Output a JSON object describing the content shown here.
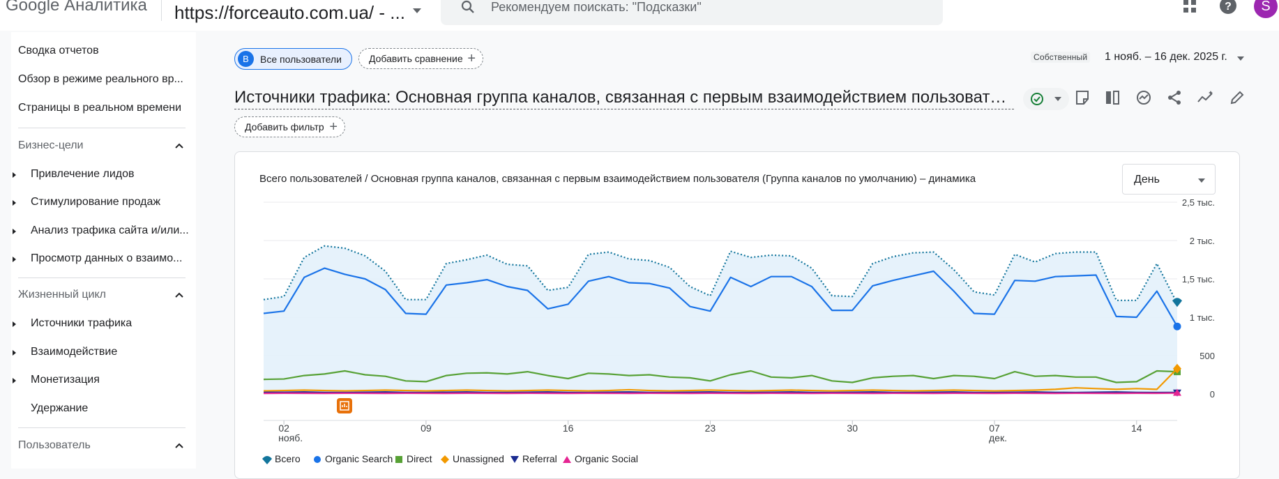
{
  "topbar": {
    "brand": "Google Аналитика",
    "property": "https://forceauto.com.ua/ - ...",
    "search_placeholder": "Рекомендуем поискать: \"Подсказки\"",
    "avatar_letter": "S"
  },
  "sidebar": {
    "top_items": [
      {
        "label": "Сводка отчетов"
      },
      {
        "label": "Обзор в режиме реального вр..."
      },
      {
        "label": "Страницы в реальном времени"
      }
    ],
    "sections": [
      {
        "title": "Бизнес-цели",
        "items": [
          {
            "label": "Привлечение лидов"
          },
          {
            "label": "Стимулирование продаж"
          },
          {
            "label": "Анализ трафика сайта и/или..."
          },
          {
            "label": "Просмотр данных о взаимо..."
          }
        ]
      },
      {
        "title": "Жизненный цикл",
        "items": [
          {
            "label": "Источники трафика"
          },
          {
            "label": "Взаимодействие"
          },
          {
            "label": "Монетизация"
          },
          {
            "label": "Удержание"
          }
        ]
      },
      {
        "title": "Пользователь",
        "items": []
      }
    ]
  },
  "filters": {
    "segment_badge": "B",
    "segment_label": "Все пользователи",
    "add_compare": "Добавить сравнение",
    "add_filter": "Добавить фильтр"
  },
  "date": {
    "badge": "Собственный",
    "range": "1 нояб. – 16 дек. 2025 г."
  },
  "report": {
    "title": "Источники трафика: Основная группа каналов, связанная с первым взаимодействием пользователя"
  },
  "card": {
    "title": "Всего пользователей / Основная группа каналов, связанная с первым взаимодействием пользователя (Группа каналов по умолчанию) – динамика",
    "granularity": "День"
  },
  "colors": {
    "accent": "#1a73e8",
    "total": "#12759c",
    "organic_search": "#1a73e8",
    "direct": "#57a135",
    "unassigned": "#f29900",
    "referral": "#1b2c91",
    "organic_social": "#e52592"
  },
  "chart_data": {
    "type": "line",
    "x_range": [
      "2025-11-01",
      "2025-12-16"
    ],
    "x_ticks": [
      {
        "date": "2025-11-02",
        "label": "02",
        "sub": "нояб."
      },
      {
        "date": "2025-11-09",
        "label": "09",
        "sub": ""
      },
      {
        "date": "2025-11-16",
        "label": "16",
        "sub": ""
      },
      {
        "date": "2025-11-23",
        "label": "23",
        "sub": ""
      },
      {
        "date": "2025-11-30",
        "label": "30",
        "sub": ""
      },
      {
        "date": "2025-12-07",
        "label": "07",
        "sub": "дек."
      },
      {
        "date": "2025-12-14",
        "label": "14",
        "sub": ""
      }
    ],
    "y_ticks": [
      {
        "value": 0,
        "label": "0"
      },
      {
        "value": 500,
        "label": "500"
      },
      {
        "value": 1000,
        "label": "1 тыс."
      },
      {
        "value": 1500,
        "label": "1,5 тыс."
      },
      {
        "value": 2000,
        "label": "2 тыс."
      },
      {
        "value": 2500,
        "label": "2,5 тыс."
      }
    ],
    "ylim": [
      0,
      2500
    ],
    "grid": true,
    "legend_position": "bottom-left",
    "series": [
      {
        "name": "Всего",
        "color": "#12759c",
        "marker": "pin",
        "values": [
          1230,
          1270,
          1780,
          1930,
          1900,
          1800,
          1600,
          1230,
          1230,
          1700,
          1750,
          1810,
          1690,
          1670,
          1350,
          1390,
          1820,
          1850,
          1760,
          1740,
          1650,
          1400,
          1280,
          1860,
          1780,
          1810,
          1800,
          1640,
          1280,
          1270,
          1700,
          1790,
          1840,
          1850,
          1620,
          1330,
          1290,
          1820,
          1720,
          1830,
          1850,
          1850,
          1220,
          1220,
          1700,
          1180
        ]
      },
      {
        "name": "Organic Search",
        "color": "#1a73e8",
        "marker": "circle",
        "values": [
          1050,
          1080,
          1520,
          1640,
          1560,
          1500,
          1360,
          1050,
          1040,
          1420,
          1450,
          1490,
          1400,
          1350,
          1110,
          1170,
          1470,
          1530,
          1450,
          1440,
          1380,
          1140,
          1080,
          1520,
          1400,
          1530,
          1530,
          1400,
          1090,
          1090,
          1410,
          1480,
          1540,
          1600,
          1340,
          1050,
          1040,
          1480,
          1470,
          1530,
          1540,
          1550,
          1010,
          1000,
          1340,
          880
        ]
      },
      {
        "name": "Direct",
        "color": "#57a135",
        "marker": "square",
        "values": [
          190,
          195,
          240,
          260,
          300,
          250,
          230,
          170,
          160,
          240,
          270,
          275,
          260,
          290,
          240,
          200,
          270,
          260,
          240,
          250,
          220,
          210,
          170,
          250,
          300,
          220,
          210,
          240,
          170,
          150,
          210,
          230,
          240,
          200,
          240,
          230,
          200,
          290,
          230,
          240,
          220,
          220,
          150,
          160,
          300,
          290
        ]
      },
      {
        "name": "Unassigned",
        "color": "#f29900",
        "marker": "diamond",
        "values": [
          40,
          45,
          50,
          45,
          40,
          45,
          50,
          45,
          40,
          45,
          50,
          45,
          40,
          45,
          50,
          45,
          40,
          45,
          55,
          45,
          40,
          45,
          50,
          45,
          40,
          45,
          50,
          45,
          40,
          45,
          50,
          45,
          40,
          45,
          50,
          45,
          40,
          45,
          50,
          60,
          80,
          70,
          60,
          70,
          60,
          330
        ]
      },
      {
        "name": "Referral",
        "color": "#1b2c91",
        "marker": "triangle-down",
        "values": [
          20,
          22,
          25,
          20,
          18,
          22,
          25,
          20,
          18,
          22,
          25,
          20,
          18,
          22,
          25,
          20,
          18,
          22,
          25,
          20,
          18,
          22,
          25,
          20,
          18,
          22,
          25,
          20,
          18,
          22,
          25,
          20,
          18,
          22,
          25,
          20,
          18,
          22,
          25,
          20,
          18,
          22,
          25,
          20,
          18,
          20
        ]
      },
      {
        "name": "Organic Social",
        "color": "#e52592",
        "marker": "triangle-up",
        "values": [
          8,
          10,
          9,
          8,
          10,
          9,
          8,
          10,
          9,
          8,
          10,
          9,
          8,
          10,
          9,
          8,
          10,
          9,
          8,
          10,
          9,
          8,
          10,
          9,
          8,
          10,
          9,
          8,
          10,
          9,
          8,
          10,
          9,
          8,
          10,
          9,
          8,
          10,
          9,
          8,
          10,
          9,
          8,
          10,
          9,
          12
        ]
      }
    ]
  }
}
